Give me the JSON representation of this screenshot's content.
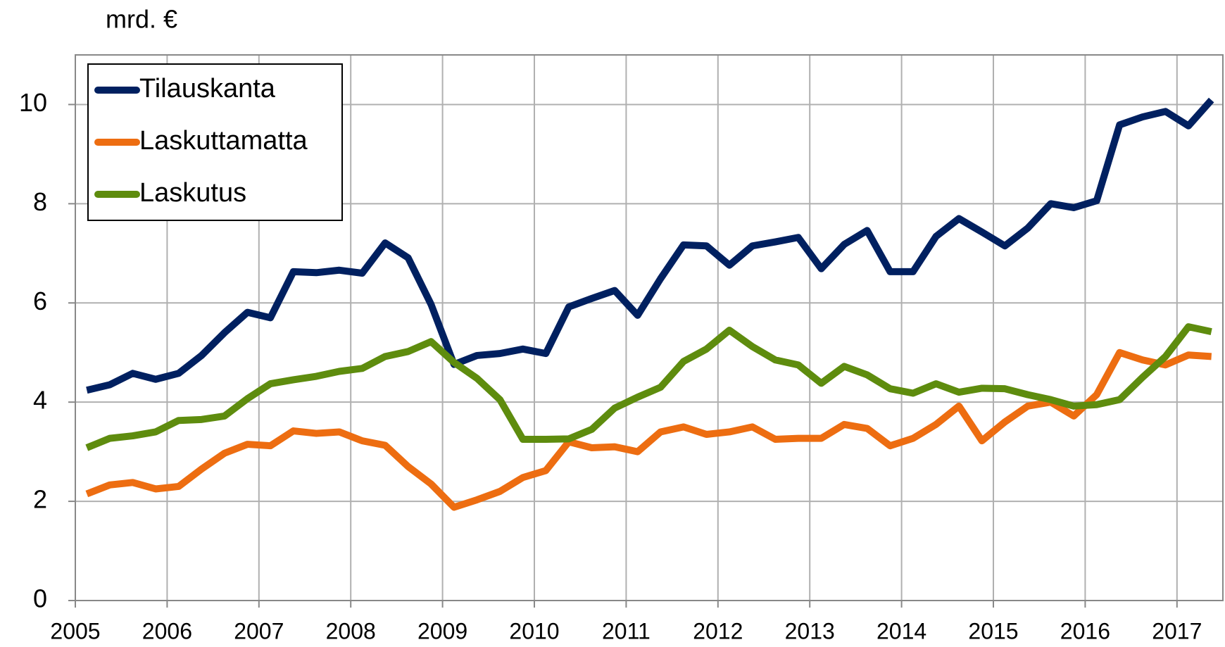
{
  "chart_data": {
    "type": "line",
    "y_label": "mrd. €",
    "x": [
      2005.125,
      2005.375,
      2005.625,
      2005.875,
      2006.125,
      2006.375,
      2006.625,
      2006.875,
      2007.125,
      2007.375,
      2007.625,
      2007.875,
      2008.125,
      2008.375,
      2008.625,
      2008.875,
      2009.125,
      2009.375,
      2009.625,
      2009.875,
      2010.125,
      2010.375,
      2010.625,
      2010.875,
      2011.125,
      2011.375,
      2011.625,
      2011.875,
      2012.125,
      2012.375,
      2012.625,
      2012.875,
      2013.125,
      2013.375,
      2013.625,
      2013.875,
      2014.125,
      2014.375,
      2014.625,
      2014.875,
      2015.125,
      2015.375,
      2015.625,
      2015.875,
      2016.125,
      2016.375,
      2016.625,
      2016.875,
      2017.125,
      2017.375
    ],
    "series": [
      {
        "name": "Tilauskanta",
        "color": "#002060",
        "values": [
          4.24,
          4.35,
          4.58,
          4.46,
          4.58,
          4.94,
          5.4,
          5.81,
          5.7,
          6.63,
          6.61,
          6.66,
          6.6,
          7.21,
          6.91,
          5.97,
          4.76,
          4.94,
          4.98,
          5.07,
          4.98,
          5.92,
          6.09,
          6.25,
          5.75,
          6.49,
          7.17,
          7.15,
          6.76,
          7.15,
          7.23,
          7.32,
          6.69,
          7.18,
          7.46,
          6.63,
          6.63,
          7.34,
          7.7,
          7.43,
          7.15,
          7.51,
          8.0,
          7.92,
          8.06,
          9.59,
          9.75,
          9.86,
          9.57,
          10.09
        ]
      },
      {
        "name": "Laskuttamatta",
        "color": "#ed6d11",
        "values": [
          2.15,
          2.33,
          2.38,
          2.25,
          2.3,
          2.65,
          2.97,
          3.15,
          3.12,
          3.42,
          3.37,
          3.4,
          3.22,
          3.13,
          2.7,
          2.35,
          1.88,
          2.03,
          2.2,
          2.48,
          2.62,
          3.2,
          3.08,
          3.1,
          3.0,
          3.4,
          3.5,
          3.35,
          3.4,
          3.5,
          3.25,
          3.27,
          3.27,
          3.55,
          3.47,
          3.12,
          3.27,
          3.55,
          3.92,
          3.22,
          3.6,
          3.92,
          4.0,
          3.72,
          4.15,
          5.0,
          4.85,
          4.75,
          4.95,
          4.92
        ]
      },
      {
        "name": "Laskutus",
        "color": "#5e8c0e",
        "values": [
          3.08,
          3.27,
          3.32,
          3.4,
          3.63,
          3.65,
          3.72,
          4.07,
          4.37,
          4.45,
          4.52,
          4.62,
          4.68,
          4.92,
          5.02,
          5.22,
          4.8,
          4.48,
          4.05,
          3.25,
          3.25,
          3.26,
          3.45,
          3.88,
          4.1,
          4.3,
          4.82,
          5.07,
          5.45,
          5.12,
          4.85,
          4.75,
          4.38,
          4.72,
          4.55,
          4.27,
          4.18,
          4.37,
          4.2,
          4.28,
          4.27,
          4.15,
          4.05,
          3.92,
          3.95,
          4.05,
          4.5,
          4.92,
          5.52,
          5.42
        ]
      }
    ],
    "xlim": [
      2005,
      2017.5
    ],
    "xticks": [
      2005,
      2006,
      2007,
      2008,
      2009,
      2010,
      2011,
      2012,
      2013,
      2014,
      2015,
      2016,
      2017
    ],
    "ylim": [
      0,
      11
    ],
    "yticks": [
      0,
      2,
      4,
      6,
      8,
      10
    ],
    "grid": true,
    "legend": "upper left"
  }
}
